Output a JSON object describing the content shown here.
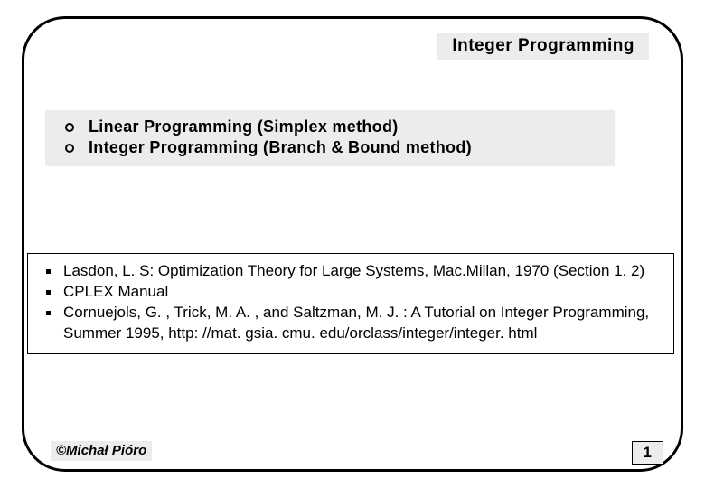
{
  "header": {
    "title": "Integer Programming"
  },
  "topics": {
    "items": [
      {
        "label": "Linear Programming (Simplex method)"
      },
      {
        "label": "Integer Programming (Branch & Bound method)"
      }
    ]
  },
  "references": {
    "items": [
      {
        "text": "Lasdon, L. S: Optimization Theory for Large Systems, Mac.Millan, 1970 (Section 1. 2)"
      },
      {
        "text": "CPLEX Manual"
      },
      {
        "text": "Cornuejols, G. , Trick, M. A. , and Saltzman, M. J. : A Tutorial on Integer Programming, Summer 1995, http: //mat. gsia. cmu. edu/orclass/integer/integer. html"
      }
    ]
  },
  "footer": {
    "author": "©Michał Pióro",
    "page": "1"
  },
  "colors": {
    "box_bg": "#ececec",
    "border": "#000000",
    "text": "#000000",
    "background": "#ffffff"
  }
}
